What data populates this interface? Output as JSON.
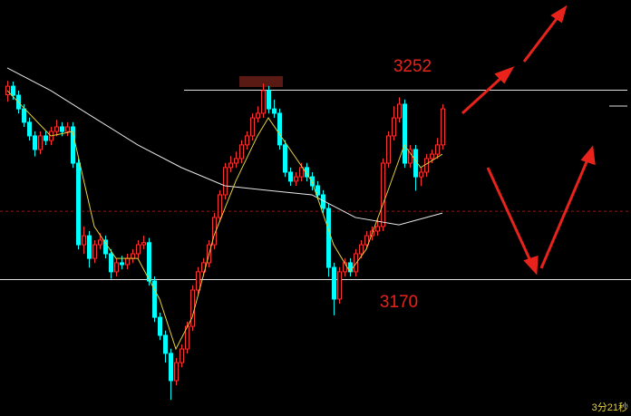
{
  "chart_data": {
    "type": "candlestick",
    "ylim": [
      3111,
      3291
    ],
    "up_color": "#ff3232",
    "down_color": "#00ffff",
    "open": [
      3250.0,
      3253.7,
      3249.8,
      3243.9,
      3238.1,
      3232.2,
      3226.3,
      3232.2,
      3230.2,
      3234.1,
      3236.1,
      3234.1,
      3236.1,
      3220.4,
      3185.1,
      3189.0,
      3179.2,
      3185.1,
      3187.1,
      3181.2,
      3173.4,
      3177.3,
      3176.5,
      3179.2,
      3181.2,
      3185.1,
      3186.0,
      3169.4,
      3153.7,
      3145.9,
      3138.1,
      3126.3,
      3134.1,
      3140.0,
      3149.8,
      3165.5,
      3173.4,
      3177.3,
      3185.1,
      3196.9,
      3206.7,
      3218.5,
      3220.4,
      3222.4,
      3228.3,
      3232.2,
      3240.0,
      3242.0,
      3251.8,
      3243.9,
      3242.0,
      3228.3,
      3216.5,
      3212.6,
      3214.5,
      3218.5,
      3214.5,
      3210.6,
      3206.7,
      3200.8,
      3175.3,
      3161.6,
      3173.4,
      3177.3,
      3173.4,
      3181.2,
      3185.1,
      3189.0,
      3191.0,
      3193.0,
      3220.4,
      3232.2,
      3240.0,
      3245.9,
      3220.4,
      3226.3,
      3214.5,
      3216.5,
      3222.4,
      3224.3,
      3228.3
    ],
    "high": [
      3256.0,
      3255.7,
      3251.8,
      3245.9,
      3240.1,
      3234.2,
      3234.2,
      3234.2,
      3236.1,
      3239.1,
      3238.1,
      3238.1,
      3238.1,
      3222.4,
      3193.0,
      3191.0,
      3187.1,
      3190.1,
      3189.1,
      3183.2,
      3179.3,
      3180.3,
      3181.2,
      3183.2,
      3187.1,
      3189.0,
      3188.0,
      3171.4,
      3155.7,
      3147.9,
      3140.1,
      3136.1,
      3142.0,
      3151.8,
      3167.5,
      3175.4,
      3179.3,
      3187.1,
      3198.9,
      3208.7,
      3220.5,
      3223.4,
      3225.4,
      3230.3,
      3234.2,
      3242.0,
      3245.0,
      3254.8,
      3253.8,
      3247.9,
      3244.0,
      3230.3,
      3218.5,
      3216.5,
      3220.5,
      3220.5,
      3216.5,
      3212.6,
      3208.7,
      3202.8,
      3177.3,
      3175.4,
      3179.3,
      3179.3,
      3183.2,
      3187.1,
      3191.0,
      3193.0,
      3196.0,
      3222.4,
      3234.2,
      3245.0,
      3248.9,
      3247.9,
      3228.3,
      3228.3,
      3218.5,
      3224.4,
      3226.3,
      3231.3,
      3245.9
    ],
    "low": [
      3247.0,
      3247.8,
      3241.9,
      3236.1,
      3230.2,
      3223.3,
      3224.3,
      3228.2,
      3228.2,
      3232.1,
      3232.1,
      3232.1,
      3218.4,
      3183.1,
      3181.1,
      3175.2,
      3177.2,
      3183.1,
      3179.2,
      3170.4,
      3171.4,
      3174.5,
      3174.5,
      3177.2,
      3179.2,
      3183.1,
      3167.4,
      3151.7,
      3143.9,
      3134.1,
      3118.0,
      3124.3,
      3132.1,
      3138.0,
      3147.8,
      3163.5,
      3171.4,
      3175.3,
      3183.1,
      3194.9,
      3204.7,
      3216.5,
      3218.4,
      3220.4,
      3226.3,
      3230.2,
      3238.0,
      3240.0,
      3241.9,
      3240.0,
      3226.3,
      3214.5,
      3210.6,
      3210.6,
      3212.5,
      3212.5,
      3208.6,
      3204.7,
      3198.8,
      3171.3,
      3154.6,
      3159.6,
      3171.4,
      3171.4,
      3171.4,
      3179.2,
      3183.1,
      3187.0,
      3189.0,
      3191.0,
      3218.4,
      3230.2,
      3238.0,
      3218.4,
      3218.4,
      3208.5,
      3210.5,
      3214.5,
      3220.4,
      3222.3,
      3226.3
    ],
    "close": [
      3253.7,
      3249.8,
      3243.9,
      3238.1,
      3232.2,
      3226.3,
      3232.2,
      3230.2,
      3234.1,
      3236.1,
      3234.1,
      3236.1,
      3220.4,
      3185.1,
      3189.0,
      3179.2,
      3185.1,
      3187.1,
      3181.2,
      3173.4,
      3177.3,
      3176.5,
      3179.2,
      3181.2,
      3185.1,
      3186.0,
      3169.4,
      3153.7,
      3145.9,
      3138.1,
      3126.3,
      3134.1,
      3140.0,
      3149.8,
      3165.5,
      3173.4,
      3177.3,
      3185.1,
      3196.9,
      3206.7,
      3218.5,
      3220.4,
      3222.4,
      3228.3,
      3232.2,
      3240.0,
      3242.0,
      3251.8,
      3243.9,
      3242.0,
      3228.3,
      3216.5,
      3212.6,
      3214.5,
      3218.5,
      3214.5,
      3210.6,
      3206.7,
      3200.8,
      3175.3,
      3161.6,
      3173.4,
      3177.3,
      3173.4,
      3181.2,
      3185.1,
      3189.0,
      3191.0,
      3193.0,
      3220.4,
      3232.2,
      3240.0,
      3245.9,
      3220.4,
      3226.3,
      3214.5,
      3216.5,
      3222.4,
      3224.3,
      3228.3,
      3243.9
    ],
    "lines": [
      {
        "color": "#e8e8e8",
        "x": [
          0,
          8,
          16,
          24,
          32,
          40,
          48,
          56,
          64,
          72,
          80
        ],
        "values": [
          3261.6,
          3251.8,
          3240.0,
          3228.3,
          3218.5,
          3210.6,
          3208.6,
          3206.7,
          3196.9,
          3193.7,
          3198.8
        ]
      },
      {
        "color": "#e6d23c",
        "x": [
          0,
          4,
          8,
          12,
          16,
          20,
          24,
          28,
          31,
          34,
          38,
          42,
          46,
          48,
          52,
          56,
          60,
          63,
          66,
          70,
          73,
          76,
          80
        ],
        "values": [
          3251.8,
          3242.0,
          3232.2,
          3234.1,
          3193.0,
          3179.2,
          3179.2,
          3161.6,
          3140.0,
          3153.7,
          3189.0,
          3212.6,
          3232.2,
          3240.0,
          3226.3,
          3212.6,
          3185.1,
          3173.4,
          3183.1,
          3208.6,
          3228.3,
          3218.5,
          3224.3
        ]
      }
    ],
    "levels": [
      3252,
      3170
    ],
    "ref_line": 3199.6,
    "countdown": "3分21秒"
  }
}
